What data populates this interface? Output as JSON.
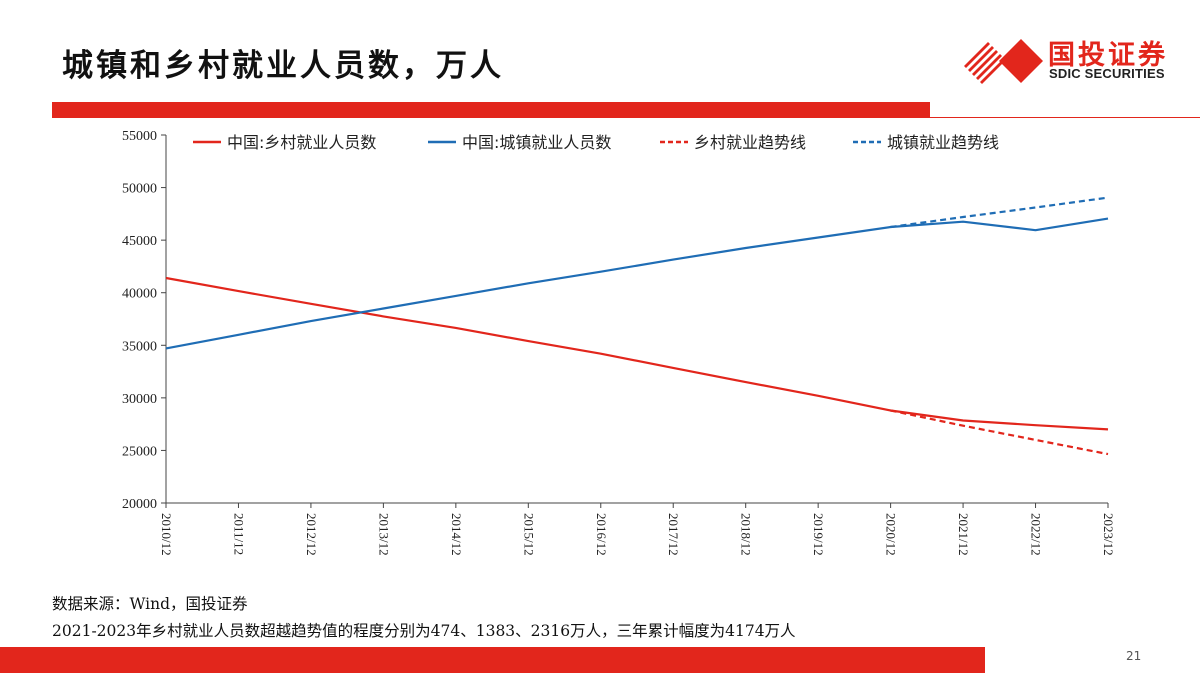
{
  "page": {
    "title": "城镇和乡村就业人员数，万人",
    "source": "数据来源：Wind，国投证券",
    "caption": "2021-2023年乡村就业人员数超越趋势值的程度分别为474、1383、2316万人，三年累计幅度为4174万人",
    "page_number": "21"
  },
  "logo": {
    "name_cn": "国投证券",
    "name_en": "SDIC SECURITIES",
    "brand_color": "#e2261c"
  },
  "colors": {
    "accent": "#e2261c",
    "rural": "#e2261c",
    "urban": "#1f6db5"
  },
  "chart_data": {
    "type": "line",
    "title": "",
    "xlabel": "",
    "ylabel": "",
    "ylim": [
      20000,
      55000
    ],
    "yticks": [
      20000,
      25000,
      30000,
      35000,
      40000,
      45000,
      50000,
      55000
    ],
    "categories": [
      "2010/12",
      "2011/12",
      "2012/12",
      "2013/12",
      "2014/12",
      "2015/12",
      "2016/12",
      "2017/12",
      "2018/12",
      "2019/12",
      "2020/12",
      "2021/12",
      "2022/12",
      "2023/12"
    ],
    "legend_position": "top",
    "series": [
      {
        "name": "中国:乡村就业人员数",
        "style": "solid",
        "color": "#e2261c",
        "values": [
          41400,
          40150,
          38950,
          37750,
          36650,
          35400,
          34200,
          32850,
          31500,
          30200,
          28800,
          27850,
          27400,
          27000
        ]
      },
      {
        "name": "中国:城镇就业人员数",
        "style": "solid",
        "color": "#1f6db5",
        "values": [
          34700,
          36000,
          37300,
          38500,
          39700,
          40900,
          42000,
          43150,
          44250,
          45250,
          46250,
          46750,
          45950,
          47050
        ]
      },
      {
        "name": "乡村就业趋势线",
        "style": "dashed",
        "color": "#e2261c",
        "values": [
          null,
          null,
          null,
          null,
          null,
          null,
          null,
          null,
          null,
          null,
          28800,
          27350,
          26000,
          24650
        ]
      },
      {
        "name": "城镇就业趋势线",
        "style": "dashed",
        "color": "#1f6db5",
        "values": [
          null,
          null,
          null,
          null,
          null,
          null,
          null,
          null,
          null,
          null,
          46250,
          47200,
          48100,
          49050
        ]
      }
    ]
  }
}
